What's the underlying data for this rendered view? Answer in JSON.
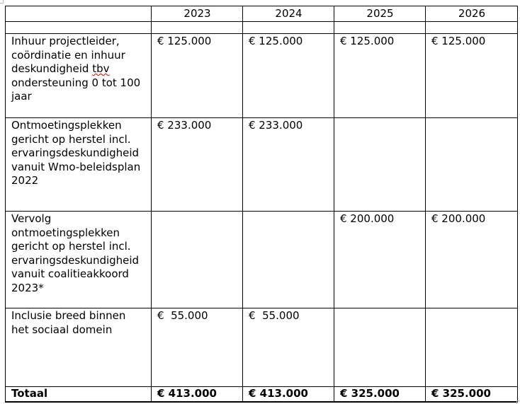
{
  "table": {
    "header": [
      "",
      "2023",
      "2024",
      "2025",
      "2026"
    ],
    "rows": [
      {
        "label": "Inhuur projectleider, coördinatie en inhuur deskundigheid ",
        "label_misspelled": "tbv",
        "label_rest": " ondersteuning 0 tot 100 jaar",
        "values": [
          "€ 125.000",
          "€ 125.000",
          "€ 125.000",
          "€ 125.000"
        ]
      },
      {
        "label": "Ontmoetingsplekken gericht op herstel incl. ervaringsdeskundigheid vanuit Wmo-beleidsplan 2022",
        "values": [
          "€ 233.000",
          "€ 233.000",
          "",
          ""
        ]
      },
      {
        "label": "Vervolg ontmoetingsplekken gericht op herstel incl. ervaringsdeskundigheid vanuit coalitieakkoord 2023*",
        "values": [
          "",
          "",
          "€ 200.000",
          "€ 200.000"
        ]
      },
      {
        "label": "Inclusie breed binnen het sociaal domein",
        "values": [
          "€  55.000",
          "€  55.000",
          "",
          ""
        ]
      }
    ],
    "total": {
      "label": "Totaal",
      "values": [
        "€ 413.000",
        "€ 413.000",
        "€ 325.000",
        "€ 325.000"
      ]
    }
  }
}
